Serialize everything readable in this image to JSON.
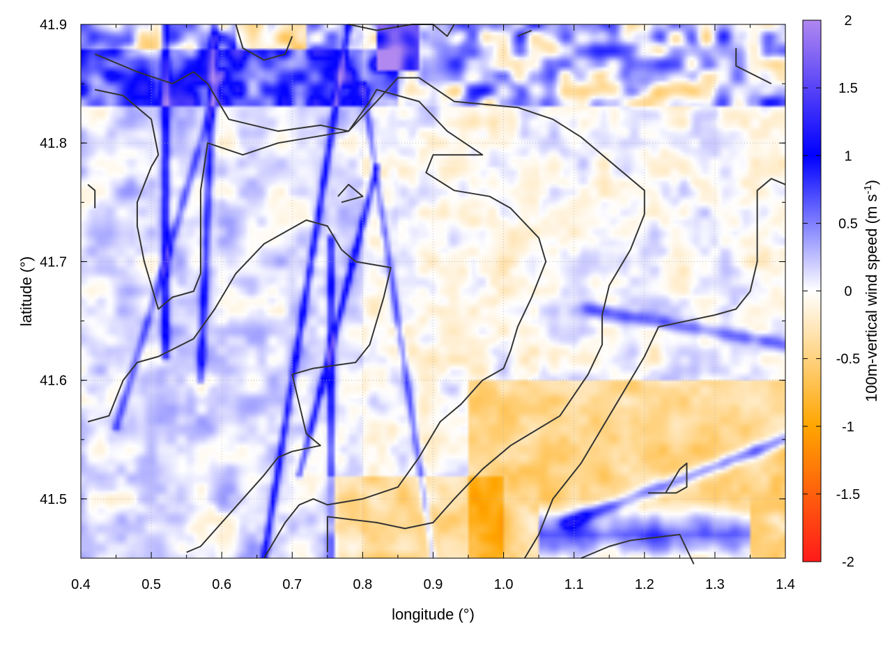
{
  "chart_data": {
    "type": "heatmap",
    "title": "",
    "xlabel": "longitude (°)",
    "ylabel": "latitude (°)",
    "colorbar_label_main": "100m-vertical wind speed (m s",
    "colorbar_label_sup": "-1",
    "colorbar_label_end": ")",
    "xlim": [
      0.4,
      1.4
    ],
    "ylim": [
      41.45,
      41.9
    ],
    "clim": [
      -2,
      2
    ],
    "x_ticks": [
      0.4,
      0.5,
      0.6,
      0.7,
      0.8,
      0.9,
      1.0,
      1.1,
      1.2,
      1.3,
      1.4
    ],
    "x_tick_labels": [
      "0.4",
      "0.5",
      "0.6",
      "0.7",
      "0.8",
      "0.9",
      "1.0",
      "1.1",
      "1.2",
      "1.3",
      "1.4"
    ],
    "y_ticks": [
      41.5,
      41.6,
      41.7,
      41.8,
      41.9
    ],
    "y_tick_labels": [
      "41.5",
      "41.6",
      "41.7",
      "41.8",
      "41.9"
    ],
    "colorbar_ticks": [
      -2,
      -1.5,
      -1,
      -0.5,
      0,
      0.5,
      1,
      1.5,
      2
    ],
    "colorbar_tick_labels": [
      "-2",
      "-1.5",
      "-1",
      "-0.5",
      "0",
      "0.5",
      "1",
      "1.5",
      "2"
    ],
    "colormap": [
      {
        "v": -2,
        "color": "#ff1a1a"
      },
      {
        "v": -1,
        "color": "#ffa500"
      },
      {
        "v": 0,
        "color": "#ffffff"
      },
      {
        "v": 1,
        "color": "#0000ff"
      },
      {
        "v": 2,
        "color": "#b088f0"
      }
    ],
    "grid": true,
    "contour_color": "#333333",
    "contours": [
      [
        [
          0.42,
          41.875
        ],
        [
          0.48,
          41.86
        ],
        [
          0.53,
          41.85
        ],
        [
          0.56,
          41.86
        ],
        [
          0.58,
          41.85
        ],
        [
          0.61,
          41.82
        ],
        [
          0.68,
          41.81
        ],
        [
          0.74,
          41.815
        ],
        [
          0.78,
          41.81
        ],
        [
          0.82,
          41.835
        ],
        [
          0.85,
          41.855
        ],
        [
          0.88,
          41.855
        ],
        [
          0.93,
          41.835
        ],
        [
          1.02,
          41.83
        ],
        [
          1.07,
          41.82
        ],
        [
          1.11,
          41.805
        ],
        [
          1.16,
          41.78
        ],
        [
          1.2,
          41.76
        ],
        [
          1.2,
          41.74
        ],
        [
          1.18,
          41.71
        ],
        [
          1.15,
          41.68
        ],
        [
          1.14,
          41.655
        ],
        [
          1.14,
          41.63
        ],
        [
          1.12,
          41.605
        ],
        [
          1.08,
          41.57
        ],
        [
          1.01,
          41.545
        ],
        [
          0.97,
          41.525
        ],
        [
          0.93,
          41.5
        ],
        [
          0.9,
          41.48
        ],
        [
          0.86,
          41.475
        ],
        [
          0.82,
          41.48
        ],
        [
          0.75,
          41.485
        ],
        [
          0.75,
          41.455
        ]
      ],
      [
        [
          0.42,
          41.845
        ],
        [
          0.46,
          41.84
        ],
        [
          0.5,
          41.82
        ],
        [
          0.51,
          41.79
        ],
        [
          0.5,
          41.78
        ],
        [
          0.48,
          41.75
        ],
        [
          0.48,
          41.73
        ],
        [
          0.49,
          41.7
        ],
        [
          0.5,
          41.68
        ],
        [
          0.51,
          41.66
        ],
        [
          0.53,
          41.67
        ],
        [
          0.56,
          41.675
        ],
        [
          0.57,
          41.69
        ],
        [
          0.57,
          41.72
        ],
        [
          0.57,
          41.76
        ],
        [
          0.58,
          41.8
        ],
        [
          0.63,
          41.79
        ],
        [
          0.68,
          41.8
        ],
        [
          0.78,
          41.81
        ],
        [
          0.81,
          41.835
        ],
        [
          0.82,
          41.845
        ],
        [
          0.88,
          41.835
        ],
        [
          0.92,
          41.81
        ],
        [
          0.97,
          41.79
        ],
        [
          0.94,
          41.79
        ],
        [
          0.9,
          41.79
        ],
        [
          0.89,
          41.775
        ],
        [
          0.93,
          41.76
        ],
        [
          0.98,
          41.755
        ],
        [
          1.01,
          41.745
        ],
        [
          1.05,
          41.72
        ],
        [
          1.06,
          41.7
        ],
        [
          1.04,
          41.67
        ],
        [
          1.02,
          41.645
        ],
        [
          1.01,
          41.625
        ],
        [
          1.0,
          41.61
        ],
        [
          0.97,
          41.6
        ],
        [
          0.94,
          41.58
        ],
        [
          0.91,
          41.565
        ],
        [
          0.88,
          41.535
        ],
        [
          0.85,
          41.51
        ],
        [
          0.8,
          41.5
        ],
        [
          0.75,
          41.495
        ],
        [
          0.73,
          41.5
        ],
        [
          0.71,
          41.495
        ],
        [
          0.69,
          41.48
        ],
        [
          0.67,
          41.46
        ],
        [
          0.66,
          41.45
        ]
      ],
      [
        [
          0.41,
          41.565
        ],
        [
          0.44,
          41.57
        ],
        [
          0.46,
          41.6
        ],
        [
          0.48,
          41.615
        ],
        [
          0.51,
          41.62
        ],
        [
          0.56,
          41.635
        ],
        [
          0.59,
          41.66
        ],
        [
          0.62,
          41.69
        ],
        [
          0.66,
          41.715
        ],
        [
          0.69,
          41.725
        ],
        [
          0.72,
          41.735
        ],
        [
          0.75,
          41.73
        ],
        [
          0.77,
          41.71
        ],
        [
          0.79,
          41.7
        ],
        [
          0.84,
          41.695
        ],
        [
          0.83,
          41.67
        ],
        [
          0.81,
          41.63
        ],
        [
          0.79,
          41.615
        ],
        [
          0.73,
          41.61
        ],
        [
          0.7,
          41.605
        ],
        [
          0.71,
          41.58
        ],
        [
          0.72,
          41.555
        ],
        [
          0.74,
          41.545
        ],
        [
          0.7,
          41.54
        ],
        [
          0.68,
          41.535
        ],
        [
          0.66,
          41.52
        ],
        [
          0.63,
          41.5
        ],
        [
          0.6,
          41.48
        ],
        [
          0.57,
          41.46
        ],
        [
          0.55,
          41.455
        ]
      ],
      [
        [
          1.11,
          41.45
        ],
        [
          1.15,
          41.46
        ],
        [
          1.18,
          41.465
        ],
        [
          1.25,
          41.47
        ],
        [
          1.27,
          41.445
        ]
      ],
      [
        [
          1.03,
          41.45
        ],
        [
          1.05,
          41.47
        ],
        [
          1.07,
          41.5
        ],
        [
          1.11,
          41.53
        ],
        [
          1.14,
          41.56
        ],
        [
          1.17,
          41.59
        ],
        [
          1.2,
          41.62
        ],
        [
          1.22,
          41.645
        ],
        [
          1.3,
          41.655
        ],
        [
          1.33,
          41.66
        ],
        [
          1.35,
          41.675
        ],
        [
          1.36,
          41.7
        ],
        [
          1.36,
          41.73
        ],
        [
          1.36,
          41.76
        ],
        [
          1.38,
          41.77
        ],
        [
          1.4,
          41.765
        ]
      ],
      [
        [
          1.205,
          41.505
        ],
        [
          1.245,
          41.505
        ],
        [
          1.26,
          41.51
        ],
        [
          1.26,
          41.53
        ],
        [
          1.25,
          41.525
        ],
        [
          1.23,
          41.505
        ]
      ],
      [
        [
          0.765,
          41.755
        ],
        [
          0.78,
          41.765
        ],
        [
          0.8,
          41.755
        ],
        [
          0.77,
          41.75
        ]
      ],
      [
        [
          0.62,
          41.9
        ],
        [
          0.63,
          41.88
        ],
        [
          0.66,
          41.87
        ],
        [
          0.69,
          41.875
        ],
        [
          0.7,
          41.89
        ]
      ],
      [
        [
          0.78,
          41.9
        ],
        [
          0.82,
          41.895
        ],
        [
          0.87,
          41.9
        ],
        [
          0.9,
          41.9
        ],
        [
          0.92,
          41.89
        ],
        [
          0.93,
          41.9
        ]
      ],
      [
        [
          1.33,
          41.88
        ],
        [
          1.33,
          41.865
        ],
        [
          1.38,
          41.85
        ]
      ],
      [
        [
          1.02,
          41.89
        ],
        [
          1.04,
          41.895
        ]
      ],
      [
        [
          0.41,
          41.765
        ],
        [
          0.42,
          41.76
        ],
        [
          0.42,
          41.745
        ]
      ]
    ]
  }
}
